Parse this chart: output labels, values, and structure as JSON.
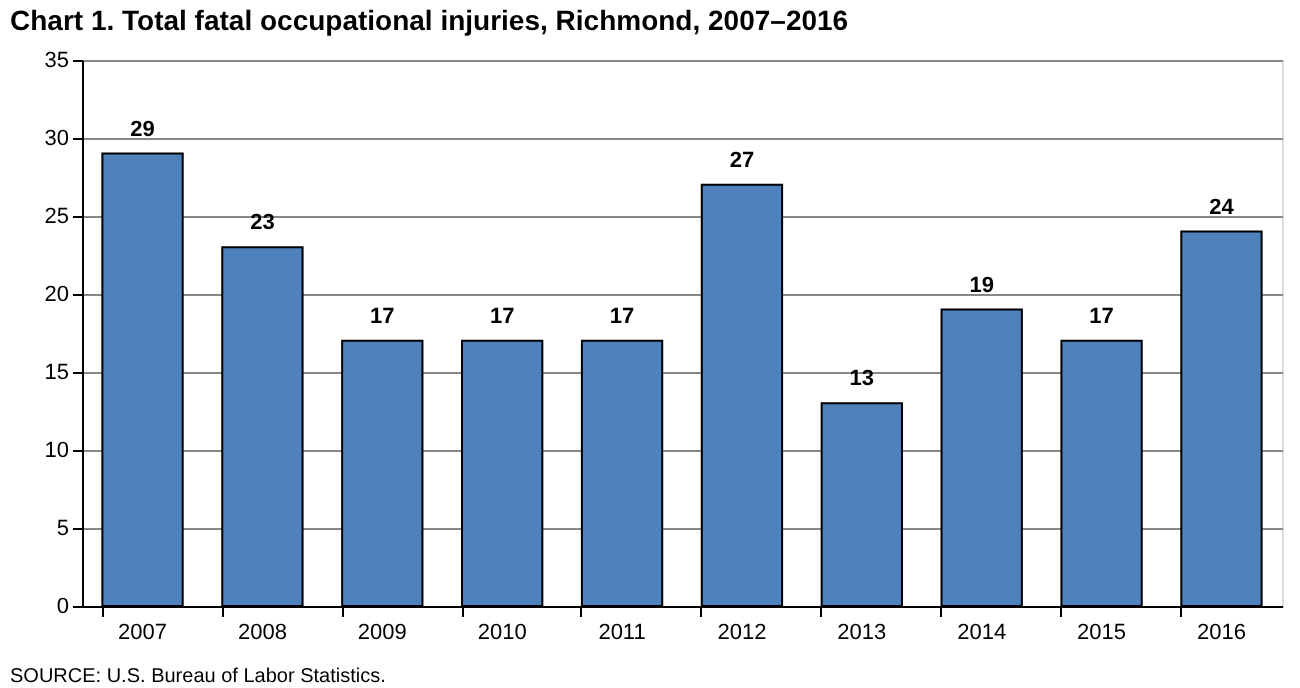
{
  "chart_data": {
    "type": "bar",
    "title": "Chart 1. Total fatal occupational injuries, Richmond, 2007–2016",
    "categories": [
      "2007",
      "2008",
      "2009",
      "2010",
      "2011",
      "2012",
      "2013",
      "2014",
      "2015",
      "2016"
    ],
    "values": [
      29,
      23,
      17,
      17,
      17,
      27,
      13,
      19,
      17,
      24
    ],
    "color": "#4f81bd",
    "ylim": [
      0,
      35
    ],
    "yticks": [
      0,
      5,
      10,
      15,
      20,
      25,
      30,
      35
    ],
    "grid": "y",
    "data_labels": true,
    "annotations": [
      "SOURCE: U.S. Bureau of Labor Statistics."
    ]
  }
}
